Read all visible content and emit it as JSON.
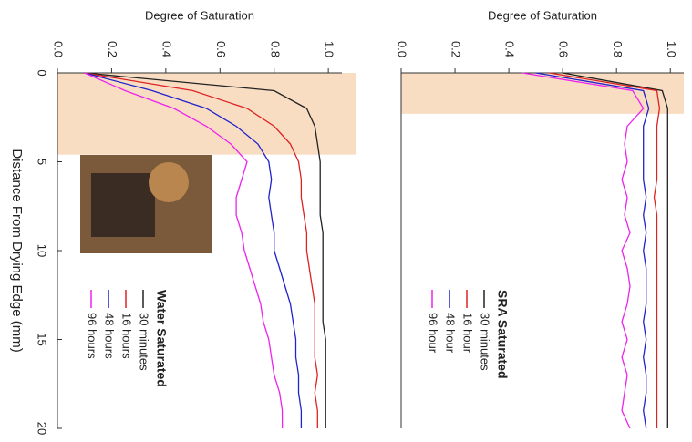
{
  "chart_data": [
    {
      "type": "line",
      "title": "Degree of Saturation",
      "x_label": "Distance From Drying Edge (mm)",
      "legend_title": "Water Saturated",
      "x": [
        0,
        1,
        2,
        3,
        4,
        5,
        6,
        7,
        8,
        9,
        10,
        11,
        12,
        13,
        14,
        15,
        16,
        17,
        18,
        19,
        20
      ],
      "series": [
        {
          "name": "30 minutes",
          "color": "#222222",
          "values": [
            0.1,
            0.8,
            0.92,
            0.95,
            0.96,
            0.97,
            0.97,
            0.97,
            0.97,
            0.98,
            0.98,
            0.98,
            0.98,
            0.98,
            0.98,
            0.99,
            0.99,
            0.99,
            0.99,
            0.99,
            0.99
          ]
        },
        {
          "name": "16 hours",
          "color": "#dd2222",
          "values": [
            0.1,
            0.5,
            0.7,
            0.8,
            0.86,
            0.89,
            0.9,
            0.9,
            0.91,
            0.92,
            0.92,
            0.93,
            0.94,
            0.95,
            0.95,
            0.95,
            0.95,
            0.96,
            0.95,
            0.96,
            0.96
          ]
        },
        {
          "name": "48 hours",
          "color": "#2222cc",
          "values": [
            0.1,
            0.35,
            0.55,
            0.66,
            0.74,
            0.78,
            0.79,
            0.78,
            0.79,
            0.8,
            0.8,
            0.82,
            0.84,
            0.86,
            0.87,
            0.88,
            0.88,
            0.89,
            0.89,
            0.9,
            0.9
          ]
        },
        {
          "name": "96 hours",
          "color": "#ee22ee",
          "values": [
            0.1,
            0.25,
            0.43,
            0.55,
            0.64,
            0.7,
            0.68,
            0.66,
            0.66,
            0.68,
            0.69,
            0.71,
            0.73,
            0.75,
            0.76,
            0.78,
            0.79,
            0.8,
            0.82,
            0.83,
            0.83
          ]
        }
      ],
      "xlim": [
        0,
        20
      ],
      "xticks": [
        0,
        5,
        10,
        15,
        20
      ],
      "ylim": [
        0,
        1.05
      ],
      "yticks": [
        {
          "value": 0,
          "label": "0.0"
        },
        0.2,
        0.4,
        0.6,
        0.8,
        {
          "value": 1,
          "label": "1.0"
        }
      ],
      "highlight": [
        0,
        4.6
      ]
    },
    {
      "type": "line",
      "title": "Degree of Saturation",
      "legend_title": "SRA Saturated",
      "x": [
        0,
        1,
        2,
        3,
        4,
        5,
        6,
        7,
        8,
        9,
        10,
        11,
        12,
        13,
        14,
        15,
        16,
        17,
        18,
        19,
        20
      ],
      "series": [
        {
          "name": "30 minutes",
          "color": "#222222",
          "values": [
            0.6,
            0.97,
            0.99,
            0.99,
            0.99,
            0.99,
            0.99,
            0.99,
            0.99,
            0.99,
            0.99,
            0.99,
            0.99,
            0.99,
            0.99,
            0.99,
            0.99,
            0.99,
            0.99,
            0.99,
            0.99
          ]
        },
        {
          "name": "16 hour",
          "color": "#dd2222",
          "values": [
            0.55,
            0.95,
            0.96,
            0.95,
            0.95,
            0.95,
            0.95,
            0.94,
            0.95,
            0.95,
            0.95,
            0.95,
            0.95,
            0.95,
            0.95,
            0.95,
            0.95,
            0.95,
            0.95,
            0.95,
            0.95
          ]
        },
        {
          "name": "48 hour",
          "color": "#2222cc",
          "values": [
            0.5,
            0.9,
            0.92,
            0.9,
            0.9,
            0.9,
            0.9,
            0.91,
            0.9,
            0.91,
            0.9,
            0.91,
            0.91,
            0.91,
            0.9,
            0.91,
            0.9,
            0.91,
            0.91,
            0.9,
            0.91
          ]
        },
        {
          "name": "96 hour",
          "color": "#ee22ee",
          "values": [
            0.45,
            0.86,
            0.9,
            0.84,
            0.83,
            0.84,
            0.82,
            0.84,
            0.83,
            0.85,
            0.82,
            0.84,
            0.85,
            0.84,
            0.82,
            0.84,
            0.82,
            0.84,
            0.83,
            0.82,
            0.85
          ]
        }
      ],
      "xlim": [
        0,
        20
      ],
      "ylim": [
        0,
        1.05
      ],
      "yticks": [
        {
          "value": 0,
          "label": "0.0"
        },
        0.2,
        0.4,
        0.6,
        0.8,
        {
          "value": 1,
          "label": "1.0"
        }
      ],
      "highlight": [
        0,
        2.3
      ]
    }
  ]
}
